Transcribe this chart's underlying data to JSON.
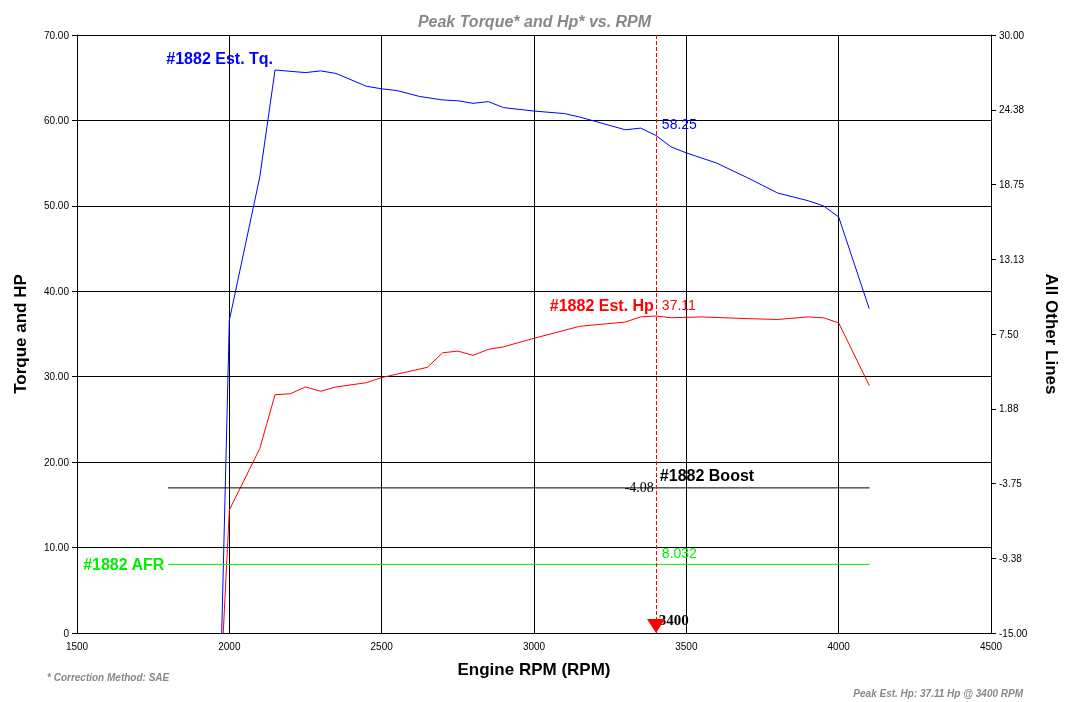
{
  "chart_data": {
    "type": "line",
    "title": "Peak Torque* and Hp* vs. RPM",
    "xlabel": "Engine RPM (RPM)",
    "ylabel": "Torque and HP",
    "y2label": "All Other Lines",
    "xlim": [
      1500,
      4500
    ],
    "xticks": [
      1500,
      2000,
      2500,
      3000,
      3500,
      4000,
      4500
    ],
    "ylim": [
      0,
      70
    ],
    "yticks": [
      {
        "value": 0,
        "label": "0"
      },
      {
        "value": 10,
        "label": "10.00"
      },
      {
        "value": 20,
        "label": "20.00"
      },
      {
        "value": 30,
        "label": "30.00"
      },
      {
        "value": 40,
        "label": "40.00"
      },
      {
        "value": 50,
        "label": "50.00"
      },
      {
        "value": 60,
        "label": "60.00"
      },
      {
        "value": 70,
        "label": "70.00"
      }
    ],
    "y2lim": [
      -15,
      30
    ],
    "y2ticks": [
      {
        "value": -15,
        "label": "-15.00"
      },
      {
        "value": -9.375,
        "label": "-9.38"
      },
      {
        "value": -3.75,
        "label": "-3.75"
      },
      {
        "value": 1.875,
        "label": "1.88"
      },
      {
        "value": 7.5,
        "label": "7.50"
      },
      {
        "value": 13.125,
        "label": "13.13"
      },
      {
        "value": 18.75,
        "label": "18.75"
      },
      {
        "value": 24.375,
        "label": "24.38"
      },
      {
        "value": 30,
        "label": "30.00"
      }
    ],
    "grid": true,
    "legend": false,
    "marker": "none",
    "line_style": "solid",
    "series": [
      {
        "name": "#1882 Est. Tq.",
        "color": "#0000ff",
        "x": [
          1975,
          2000,
          2100,
          2150,
          2250,
          2300,
          2350,
          2450,
          2500,
          2550,
          2625,
          2700,
          2750,
          2800,
          2850,
          2900,
          3000,
          3100,
          3150,
          3200,
          3300,
          3350,
          3400,
          3450,
          3500,
          3600,
          3700,
          3750,
          3800,
          3900,
          3950,
          4000,
          4100
        ],
        "values": [
          0,
          36.6,
          53.4,
          65.9,
          65.6,
          65.8,
          65.5,
          64.0,
          63.7,
          63.5,
          62.8,
          62.4,
          62.3,
          62.0,
          62.2,
          61.5,
          61.1,
          60.8,
          60.4,
          59.9,
          58.9,
          59.1,
          58.25,
          56.9,
          56.2,
          55.0,
          53.3,
          52.4,
          51.5,
          50.6,
          50.0,
          48.7,
          38.0
        ],
        "value_labels": [
          null,
          null,
          null,
          null,
          null,
          null,
          null,
          null,
          null,
          null,
          null,
          null,
          null,
          null,
          null,
          null,
          null,
          null,
          null,
          null,
          null,
          null,
          "58.25",
          null,
          null,
          null,
          null,
          null,
          null,
          null,
          null,
          null,
          null
        ]
      },
      {
        "name": "#1882 Est. Hp",
        "color": "#ff0000",
        "x": [
          1980,
          2000,
          2100,
          2150,
          2200,
          2250,
          2300,
          2350,
          2450,
          2500,
          2650,
          2700,
          2750,
          2800,
          2850,
          2900,
          3000,
          3150,
          3300,
          3350,
          3400,
          3450,
          3550,
          3700,
          3800,
          3900,
          3950,
          4000,
          4100
        ],
        "values": [
          0,
          14.4,
          21.6,
          27.9,
          28.0,
          28.8,
          28.3,
          28.8,
          29.3,
          29.9,
          31.1,
          32.8,
          33.0,
          32.5,
          33.2,
          33.5,
          34.5,
          35.9,
          36.4,
          37.0,
          37.11,
          36.9,
          37.0,
          36.8,
          36.7,
          37.0,
          36.9,
          36.3,
          29.0
        ],
        "value_labels": [
          null,
          null,
          null,
          null,
          null,
          null,
          null,
          null,
          null,
          null,
          null,
          null,
          null,
          null,
          null,
          null,
          null,
          null,
          null,
          null,
          "37.11",
          null,
          null,
          null,
          null,
          null,
          null,
          null,
          null
        ]
      },
      {
        "name": "#1882 Boost",
        "color": "#000000",
        "axis": "y2",
        "x": [
          1800,
          3400,
          4100
        ],
        "values": [
          -4.08,
          -4.08,
          -4.08
        ],
        "value_labels": [
          null,
          "-4.08",
          null
        ]
      },
      {
        "name": "#1882 AFR",
        "color": "#00ee00",
        "x": [
          1800,
          3400,
          4100
        ],
        "values": [
          8.032,
          8.032,
          8.032
        ],
        "value_labels": [
          null,
          "8.032",
          null
        ]
      }
    ],
    "ref_lines": [
      {
        "axis": "x",
        "value": 3400,
        "label": "3400",
        "color": "#ff0000",
        "line_style": "dashed"
      }
    ],
    "annotations": [
      "* Correction Method: SAE",
      "Peak Est. Hp: 37.11 Hp @ 3400 RPM"
    ]
  }
}
